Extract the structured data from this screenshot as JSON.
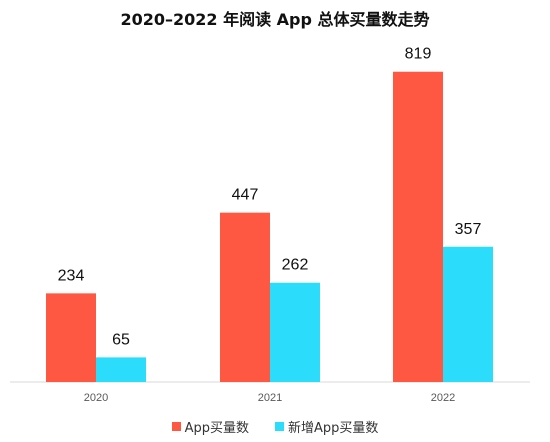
{
  "chart_data": {
    "type": "bar",
    "title": "2020–2022 年阅读 App 总体买量数走势",
    "categories": [
      "2020",
      "2021",
      "2022"
    ],
    "series": [
      {
        "name": "App买量数",
        "values": [
          234,
          447,
          819
        ],
        "color": "#ff5842"
      },
      {
        "name": "新增App买量数",
        "values": [
          65,
          262,
          357
        ],
        "color": "#2bdcfb"
      }
    ],
    "xlabel": "",
    "ylabel": "",
    "ylim": [
      0,
      850
    ],
    "grid": false,
    "data_labels": true,
    "legend_position": "bottom"
  }
}
